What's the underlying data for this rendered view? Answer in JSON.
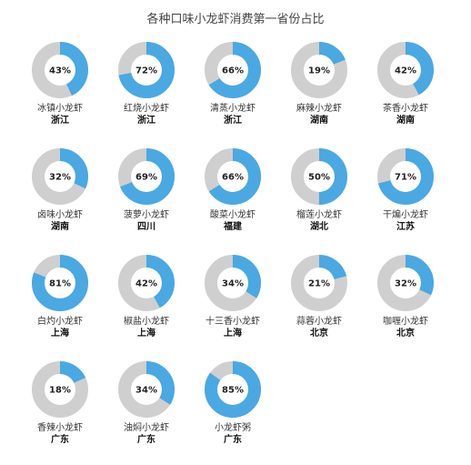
{
  "title": "各种口味小龙虾消费第一省份占比",
  "colors": {
    "filled": "#4aa8e2",
    "remaining": "#cfcfcf"
  },
  "chart_data": {
    "type": "pie",
    "variant": "donut-small-multiples",
    "title": "各种口味小龙虾消费第一省份占比",
    "items": [
      {
        "name": "冰镇小龙虾",
        "province": "浙江",
        "value": 43,
        "label": "43%"
      },
      {
        "name": "红烧小龙虾",
        "province": "浙江",
        "value": 72,
        "label": "72%"
      },
      {
        "name": "清蒸小龙虾",
        "province": "浙江",
        "value": 66,
        "label": "66%"
      },
      {
        "name": "麻辣小龙虾",
        "province": "湖南",
        "value": 19,
        "label": "19%"
      },
      {
        "name": "茶香小龙虾",
        "province": "湖南",
        "value": 42,
        "label": "42%"
      },
      {
        "name": "卤味小龙虾",
        "province": "湖南",
        "value": 32,
        "label": "32%"
      },
      {
        "name": "菠萝小龙虾",
        "province": "四川",
        "value": 69,
        "label": "69%"
      },
      {
        "name": "酸菜小龙虾",
        "province": "福建",
        "value": 66,
        "label": "66%"
      },
      {
        "name": "榴莲小龙虾",
        "province": "湖北",
        "value": 50,
        "label": "50%"
      },
      {
        "name": "干煸小龙虾",
        "province": "江苏",
        "value": 71,
        "label": "71%"
      },
      {
        "name": "白灼小龙虾",
        "province": "上海",
        "value": 81,
        "label": "81%"
      },
      {
        "name": "椒盐小龙虾",
        "province": "上海",
        "value": 42,
        "label": "42%"
      },
      {
        "name": "十三香小龙虾",
        "province": "上海",
        "value": 34,
        "label": "34%"
      },
      {
        "name": "蒜蓉小龙虾",
        "province": "北京",
        "value": 21,
        "label": "21%"
      },
      {
        "name": "咖喱小龙虾",
        "province": "北京",
        "value": 32,
        "label": "32%"
      },
      {
        "name": "香辣小龙虾",
        "province": "广东",
        "value": 18,
        "label": "18%"
      },
      {
        "name": "油焖小龙虾",
        "province": "广东",
        "value": 34,
        "label": "34%"
      },
      {
        "name": "小龙虾粥",
        "province": "广东",
        "value": 85,
        "label": "85%"
      }
    ]
  }
}
